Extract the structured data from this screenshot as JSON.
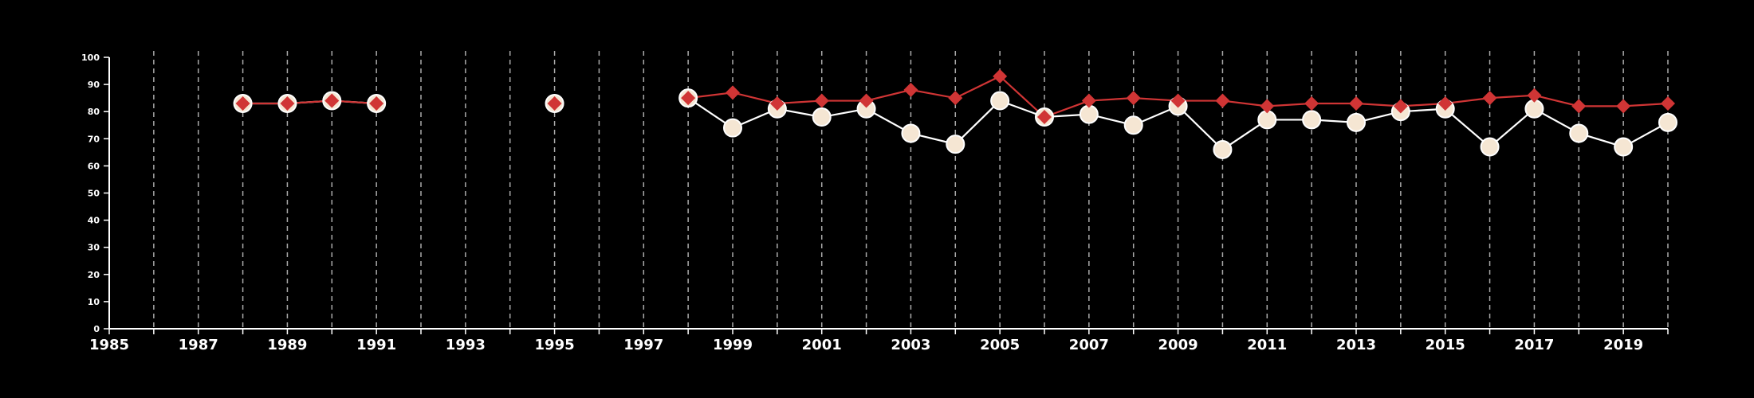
{
  "chart_data": {
    "type": "line",
    "title": "",
    "xlabel": "",
    "ylabel": "",
    "xlim": [
      1985,
      2020
    ],
    "ylim": [
      0,
      100
    ],
    "x_tick_labels": [
      "1985",
      "1987",
      "1989",
      "1991",
      "1993",
      "1995",
      "1997",
      "1999",
      "2001",
      "2003",
      "2005",
      "2007",
      "2009",
      "2011",
      "2013",
      "2015",
      "2017",
      "2019"
    ],
    "y_tick_labels": [
      "0",
      "10",
      "20",
      "30",
      "40",
      "50",
      "60",
      "70",
      "80",
      "90",
      "100"
    ],
    "grid": "vertical dashed at each year",
    "legend": "none",
    "series": [
      {
        "marker": "circle",
        "color": "#ffffff",
        "fill": "#f5e6d3",
        "points": [
          [
            1988,
            83
          ],
          [
            1989,
            83
          ],
          [
            1990,
            84
          ],
          [
            1991,
            83
          ],
          [
            1995,
            83
          ],
          [
            1998,
            85
          ],
          [
            1999,
            74
          ],
          [
            2000,
            81
          ],
          [
            2001,
            78
          ],
          [
            2002,
            81
          ],
          [
            2003,
            72
          ],
          [
            2004,
            68
          ],
          [
            2005,
            84
          ],
          [
            2006,
            78
          ],
          [
            2007,
            79
          ],
          [
            2008,
            75
          ],
          [
            2009,
            82
          ],
          [
            2010,
            66
          ],
          [
            2011,
            77
          ],
          [
            2012,
            77
          ],
          [
            2013,
            76
          ],
          [
            2014,
            80
          ],
          [
            2015,
            81
          ],
          [
            2016,
            67
          ],
          [
            2017,
            81
          ],
          [
            2018,
            72
          ],
          [
            2019,
            67
          ],
          [
            2020,
            76
          ]
        ]
      },
      {
        "marker": "diamond",
        "color": "#d03535",
        "points": [
          [
            1988,
            83
          ],
          [
            1989,
            83
          ],
          [
            1990,
            84
          ],
          [
            1991,
            83
          ],
          [
            1995,
            83
          ],
          [
            1998,
            85
          ],
          [
            1999,
            87
          ],
          [
            2000,
            83
          ],
          [
            2001,
            84
          ],
          [
            2002,
            84
          ],
          [
            2003,
            88
          ],
          [
            2004,
            85
          ],
          [
            2005,
            93
          ],
          [
            2006,
            78
          ],
          [
            2007,
            84
          ],
          [
            2008,
            85
          ],
          [
            2009,
            84
          ],
          [
            2010,
            84
          ],
          [
            2011,
            82
          ],
          [
            2012,
            83
          ],
          [
            2013,
            83
          ],
          [
            2014,
            82
          ],
          [
            2015,
            83
          ],
          [
            2016,
            85
          ],
          [
            2017,
            86
          ],
          [
            2018,
            82
          ],
          [
            2019,
            82
          ],
          [
            2020,
            83
          ]
        ]
      }
    ]
  }
}
